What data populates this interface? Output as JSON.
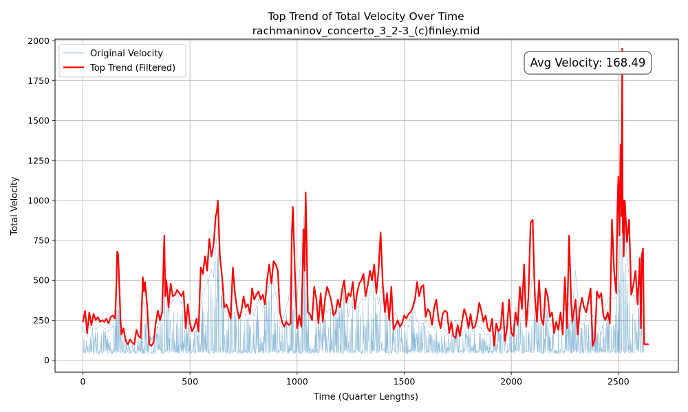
{
  "chart_data": {
    "type": "line",
    "title": "Top Trend of Total Velocity Over Time",
    "subtitle": "rachmaninov_concerto_3_2-3_(c)finley.mid",
    "xlabel": "Time (Quarter Lengths)",
    "ylabel": "Total Velocity",
    "xlim": [
      -130,
      2780
    ],
    "ylim": [
      -75,
      2010
    ],
    "xticks": [
      0,
      500,
      1000,
      1500,
      2000,
      2500
    ],
    "yticks": [
      0,
      250,
      500,
      750,
      1000,
      1250,
      1500,
      1750,
      2000
    ],
    "grid": true,
    "legend": "top-left",
    "annotation": "Avg Velocity: 168.49",
    "series": [
      {
        "name": "Original Velocity",
        "color": "#1f77b4",
        "x": [
          0,
          20,
          40,
          60,
          80,
          100,
          120,
          140,
          150,
          160,
          170,
          180,
          200,
          220,
          240,
          260,
          280,
          300,
          320,
          340,
          360,
          380,
          390,
          400,
          420,
          440,
          460,
          480,
          500,
          520,
          540,
          560,
          580,
          600,
          610,
          620,
          630,
          640,
          660,
          680,
          700,
          720,
          740,
          760,
          780,
          800,
          820,
          840,
          860,
          880,
          900,
          920,
          940,
          960,
          975,
          990,
          1010,
          1030,
          1040,
          1060,
          1080,
          1100,
          1120,
          1140,
          1160,
          1180,
          1200,
          1220,
          1240,
          1260,
          1280,
          1300,
          1320,
          1340,
          1360,
          1380,
          1400,
          1420,
          1440,
          1460,
          1480,
          1500,
          1520,
          1540,
          1560,
          1580,
          1600,
          1620,
          1640,
          1660,
          1680,
          1700,
          1720,
          1740,
          1760,
          1780,
          1800,
          1820,
          1840,
          1860,
          1880,
          1900,
          1920,
          1940,
          1960,
          1980,
          2000,
          2020,
          2040,
          2060,
          2080,
          2100,
          2120,
          2140,
          2160,
          2180,
          2200,
          2220,
          2240,
          2260,
          2280,
          2300,
          2320,
          2340,
          2360,
          2380,
          2400,
          2420,
          2440,
          2460,
          2480,
          2500,
          2510,
          2520,
          2530,
          2540,
          2560,
          2580,
          2600,
          2620
        ],
        "y": [
          200,
          150,
          230,
          190,
          220,
          200,
          180,
          210,
          300,
          580,
          420,
          200,
          140,
          120,
          130,
          110,
          380,
          250,
          130,
          180,
          250,
          650,
          500,
          300,
          380,
          420,
          360,
          300,
          180,
          200,
          270,
          420,
          480,
          560,
          520,
          700,
          820,
          650,
          420,
          270,
          450,
          330,
          300,
          280,
          360,
          280,
          380,
          330,
          430,
          520,
          420,
          230,
          280,
          380,
          600,
          250,
          520,
          900,
          600,
          250,
          330,
          300,
          340,
          300,
          330,
          340,
          350,
          450,
          280,
          380,
          330,
          380,
          380,
          420,
          500,
          350,
          500,
          280,
          250,
          300,
          220,
          220,
          210,
          360,
          240,
          230,
          240,
          210,
          200,
          250,
          230,
          160,
          200,
          250,
          150,
          180,
          240,
          180,
          220,
          200,
          160,
          160,
          150,
          240,
          200,
          250,
          170,
          330,
          250,
          300,
          280,
          560,
          350,
          290,
          350,
          210,
          260,
          260,
          230,
          430,
          220,
          560,
          230,
          220,
          320,
          280,
          240,
          160,
          350,
          400,
          380,
          430,
          900,
          1050,
          900,
          620,
          450,
          360,
          490,
          170
        ]
      },
      {
        "name": "Top Trend (Filtered)",
        "color": "#ff0000",
        "x": [
          0,
          10,
          20,
          30,
          40,
          50,
          60,
          70,
          80,
          90,
          100,
          110,
          120,
          130,
          140,
          150,
          155,
          160,
          165,
          170,
          175,
          180,
          190,
          200,
          210,
          220,
          230,
          240,
          250,
          260,
          270,
          280,
          285,
          290,
          300,
          310,
          320,
          330,
          340,
          350,
          360,
          370,
          380,
          385,
          390,
          400,
          410,
          420,
          430,
          440,
          450,
          460,
          470,
          480,
          490,
          500,
          510,
          520,
          530,
          540,
          550,
          560,
          570,
          580,
          590,
          600,
          610,
          620,
          625,
          630,
          640,
          650,
          660,
          670,
          680,
          690,
          700,
          710,
          720,
          730,
          740,
          750,
          760,
          770,
          780,
          790,
          800,
          810,
          820,
          830,
          840,
          850,
          860,
          870,
          880,
          890,
          900,
          910,
          920,
          930,
          940,
          950,
          960,
          970,
          975,
          980,
          990,
          1000,
          1010,
          1020,
          1030,
          1035,
          1040,
          1045,
          1050,
          1060,
          1070,
          1080,
          1090,
          1100,
          1110,
          1120,
          1130,
          1140,
          1150,
          1160,
          1170,
          1180,
          1190,
          1200,
          1210,
          1220,
          1230,
          1240,
          1250,
          1260,
          1270,
          1280,
          1290,
          1300,
          1310,
          1320,
          1330,
          1340,
          1350,
          1360,
          1370,
          1380,
          1390,
          1400,
          1410,
          1420,
          1430,
          1440,
          1450,
          1460,
          1470,
          1480,
          1490,
          1500,
          1510,
          1520,
          1530,
          1540,
          1550,
          1560,
          1570,
          1580,
          1590,
          1600,
          1610,
          1620,
          1630,
          1640,
          1650,
          1660,
          1670,
          1680,
          1690,
          1700,
          1710,
          1720,
          1730,
          1740,
          1750,
          1760,
          1770,
          1780,
          1790,
          1800,
          1810,
          1820,
          1830,
          1840,
          1850,
          1860,
          1870,
          1880,
          1890,
          1900,
          1910,
          1920,
          1930,
          1940,
          1950,
          1960,
          1970,
          1980,
          1990,
          2000,
          2010,
          2020,
          2030,
          2040,
          2050,
          2060,
          2070,
          2080,
          2090,
          2100,
          2110,
          2120,
          2125,
          2130,
          2140,
          2150,
          2160,
          2170,
          2180,
          2190,
          2200,
          2210,
          2220,
          2230,
          2240,
          2250,
          2260,
          2270,
          2280,
          2285,
          2290,
          2300,
          2310,
          2320,
          2330,
          2340,
          2350,
          2360,
          2370,
          2380,
          2390,
          2400,
          2410,
          2420,
          2430,
          2440,
          2450,
          2460,
          2470,
          2480,
          2490,
          2495,
          2500,
          2505,
          2510,
          2515,
          2518,
          2520,
          2523,
          2525,
          2530,
          2540,
          2550,
          2560,
          2570,
          2580,
          2590,
          2600,
          2605,
          2610,
          2615,
          2620,
          2630,
          2640
        ],
        "y": [
          240,
          310,
          170,
          300,
          220,
          290,
          250,
          270,
          240,
          250,
          240,
          260,
          230,
          270,
          280,
          260,
          400,
          680,
          660,
          480,
          270,
          160,
          200,
          120,
          100,
          130,
          110,
          100,
          190,
          150,
          140,
          520,
          430,
          490,
          340,
          100,
          90,
          110,
          230,
          310,
          250,
          300,
          780,
          400,
          500,
          330,
          480,
          400,
          410,
          440,
          420,
          400,
          430,
          200,
          350,
          230,
          180,
          210,
          260,
          180,
          580,
          540,
          650,
          560,
          760,
          650,
          720,
          900,
          930,
          1000,
          650,
          520,
          330,
          350,
          310,
          260,
          580,
          420,
          320,
          260,
          310,
          400,
          330,
          350,
          290,
          450,
          380,
          410,
          430,
          380,
          410,
          350,
          500,
          600,
          480,
          620,
          600,
          560,
          300,
          240,
          210,
          240,
          220,
          230,
          760,
          960,
          550,
          200,
          280,
          210,
          820,
          560,
          1050,
          720,
          300,
          290,
          250,
          460,
          380,
          230,
          420,
          240,
          380,
          460,
          420,
          370,
          280,
          300,
          380,
          330,
          440,
          500,
          360,
          420,
          400,
          490,
          320,
          420,
          480,
          500,
          540,
          400,
          470,
          560,
          500,
          600,
          420,
          560,
          800,
          470,
          300,
          420,
          250,
          460,
          190,
          220,
          250,
          210,
          230,
          280,
          260,
          290,
          300,
          330,
          380,
          490,
          400,
          460,
          470,
          270,
          320,
          300,
          220,
          330,
          380,
          260,
          200,
          290,
          310,
          300,
          170,
          240,
          150,
          140,
          220,
          150,
          240,
          320,
          280,
          200,
          290,
          200,
          210,
          260,
          360,
          310,
          240,
          280,
          200,
          180,
          260,
          90,
          230,
          180,
          200,
          360,
          120,
          200,
          380,
          170,
          150,
          300,
          220,
          460,
          320,
          600,
          210,
          400,
          860,
          880,
          400,
          240,
          380,
          500,
          260,
          220,
          450,
          400,
          270,
          300,
          170,
          240,
          190,
          300,
          160,
          520,
          200,
          780,
          350,
          240,
          280,
          380,
          160,
          320,
          390,
          330,
          300,
          370,
          450,
          90,
          130,
          430,
          390,
          420,
          280,
          250,
          300,
          230,
          880,
          560,
          420,
          930,
          1150,
          780,
          1350,
          900,
          1950,
          800,
          1000,
          650,
          1000,
          740,
          880,
          410,
          470,
          560,
          350,
          640,
          200,
          660,
          700,
          100,
          100,
          100
        ]
      }
    ]
  }
}
